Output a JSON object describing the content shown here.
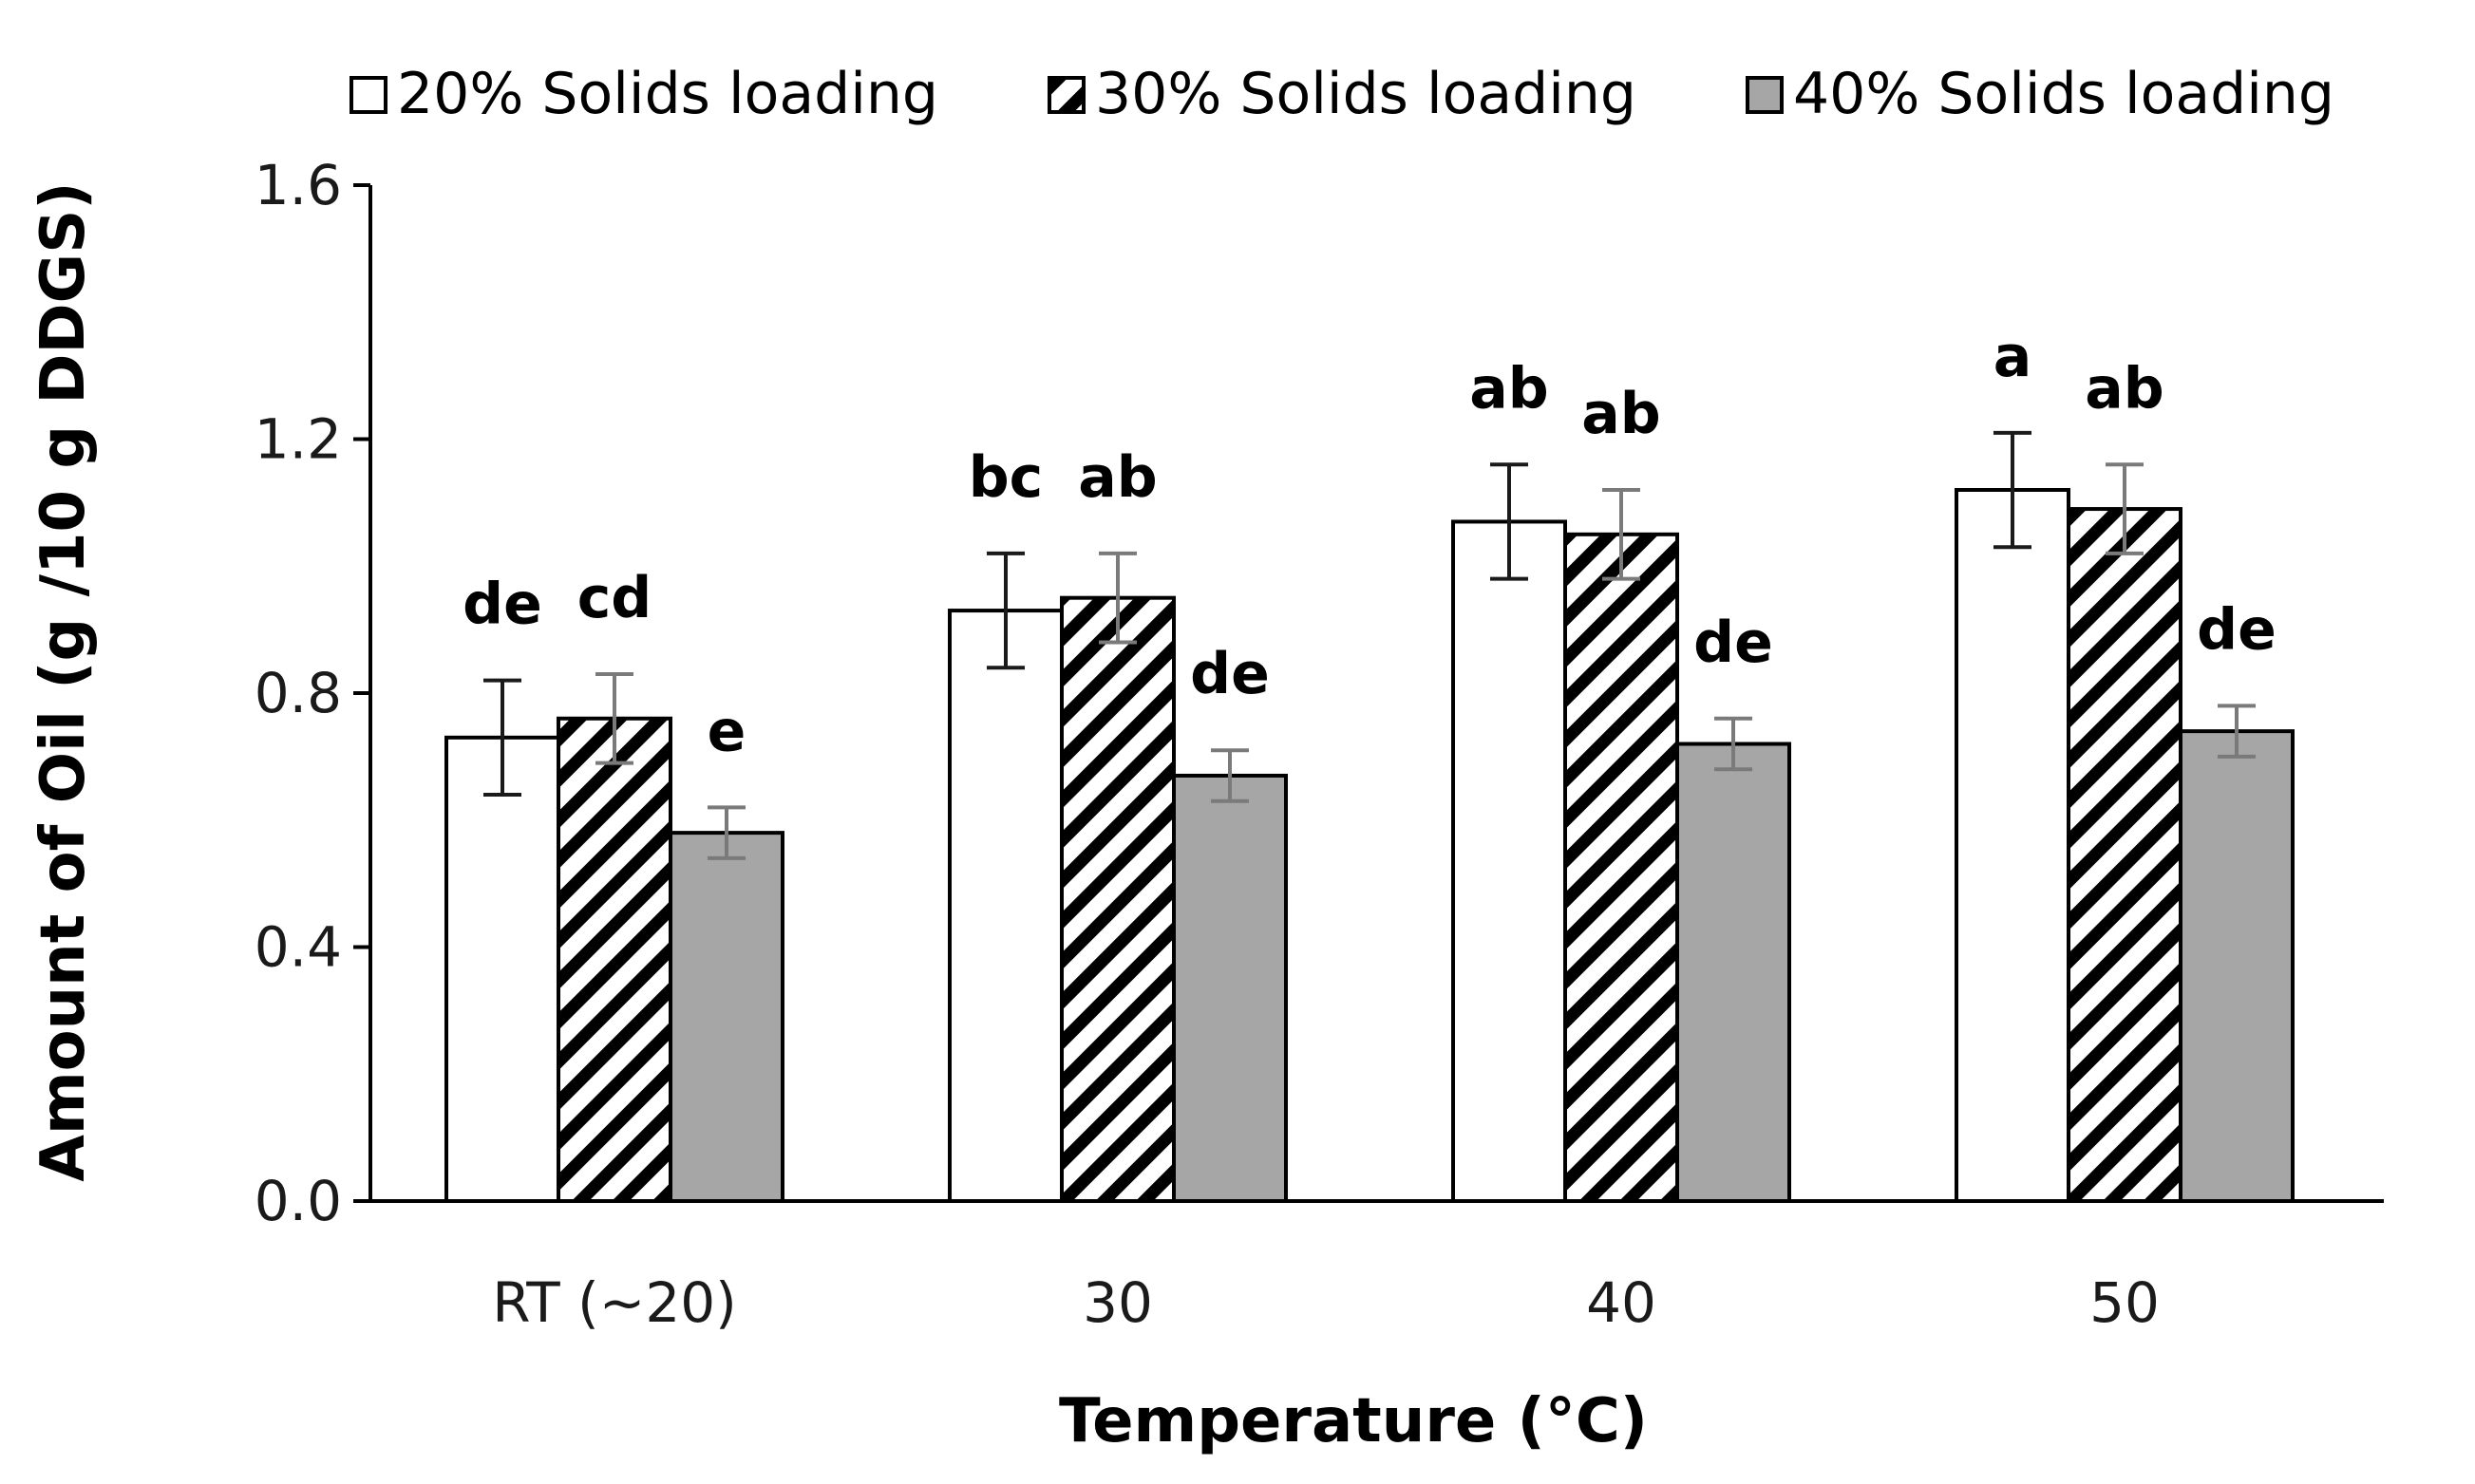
{
  "chart_data": {
    "type": "bar",
    "title": "",
    "xlabel": "Temperature (°C)",
    "ylabel": "Amount of Oil (g /10 g DDGS)",
    "ylim": [
      0,
      1.6
    ],
    "yticks": [
      "0.0",
      "0.4",
      "0.8",
      "1.2",
      "1.6"
    ],
    "categories": [
      "RT (~20)",
      "30",
      "40",
      "50"
    ],
    "legend_position": "top",
    "series": [
      {
        "name": "20% Solids loading",
        "fill": "white",
        "errbar_color": "#1a1a1a",
        "values": [
          0.73,
          0.93,
          1.07,
          1.12
        ],
        "errors": [
          0.09,
          0.09,
          0.09,
          0.09
        ],
        "sig_letters": [
          "de",
          "bc",
          "ab",
          "a"
        ]
      },
      {
        "name": "30% Solids loading",
        "fill": "hatch",
        "errbar_color": "#7a7a7a",
        "values": [
          0.76,
          0.95,
          1.05,
          1.09
        ],
        "errors": [
          0.07,
          0.07,
          0.07,
          0.07
        ],
        "sig_letters": [
          "cd",
          "ab",
          "ab",
          "ab"
        ]
      },
      {
        "name": "40% Solids loading",
        "fill": "#a6a6a6",
        "errbar_color": "#7a7a7a",
        "values": [
          0.58,
          0.67,
          0.72,
          0.74
        ],
        "errors": [
          0.04,
          0.04,
          0.04,
          0.04
        ],
        "sig_letters": [
          "e",
          "de",
          "de",
          "de"
        ]
      }
    ]
  }
}
